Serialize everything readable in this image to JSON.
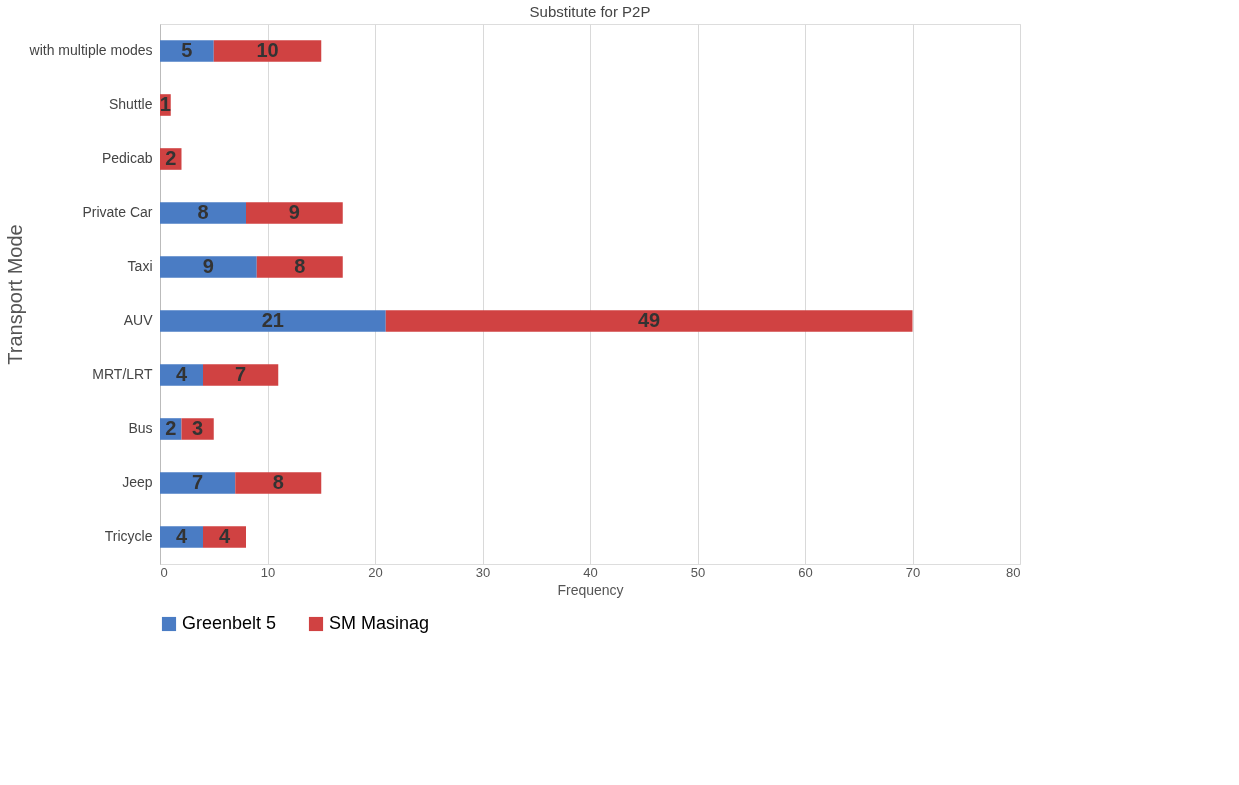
{
  "chart_data": {
    "type": "bar",
    "orientation": "horizontal",
    "stacked": true,
    "title": "Substitute for P2P",
    "xlabel": "Frequency",
    "ylabel": "Transport Mode",
    "categories": [
      "with multiple modes",
      "Shuttle",
      "Pedicab",
      "Private Car",
      "Taxi",
      "AUV",
      "MRT/LRT",
      "Bus",
      "Jeep",
      "Tricycle"
    ],
    "series": [
      {
        "name": "Greenbelt 5",
        "color": "#4a7cc4",
        "values": [
          5,
          null,
          null,
          8,
          9,
          21,
          4,
          2,
          7,
          4
        ]
      },
      {
        "name": "SM Masinag",
        "color": "#d04242",
        "values": [
          10,
          1,
          2,
          9,
          8,
          49,
          7,
          3,
          8,
          4
        ]
      }
    ],
    "data_labels": true,
    "xlim": [
      0,
      80
    ],
    "xticks": [
      0,
      10,
      20,
      30,
      40,
      50,
      60,
      70,
      80
    ],
    "grid": "x",
    "legend": "bottom"
  }
}
